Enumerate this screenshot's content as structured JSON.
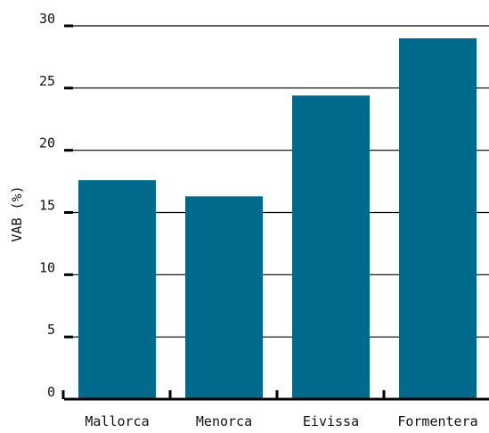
{
  "chart_data": {
    "type": "bar",
    "categories": [
      "Mallorca",
      "Menorca",
      "Eivissa",
      "Formentera"
    ],
    "values": [
      17.6,
      16.3,
      24.4,
      29.0
    ],
    "title": "",
    "xlabel": "",
    "ylabel": "VAB (%)",
    "ylim": [
      0,
      30
    ],
    "yticks": [
      0,
      5,
      10,
      15,
      20,
      25,
      30
    ],
    "ytick_labels": [
      "0",
      "5",
      "10",
      "15",
      "20",
      "25",
      "30"
    ],
    "grid": true,
    "legend": "none",
    "colors": {
      "bar": "#006A8C",
      "grid": "#000000",
      "axis": "#000000"
    }
  }
}
